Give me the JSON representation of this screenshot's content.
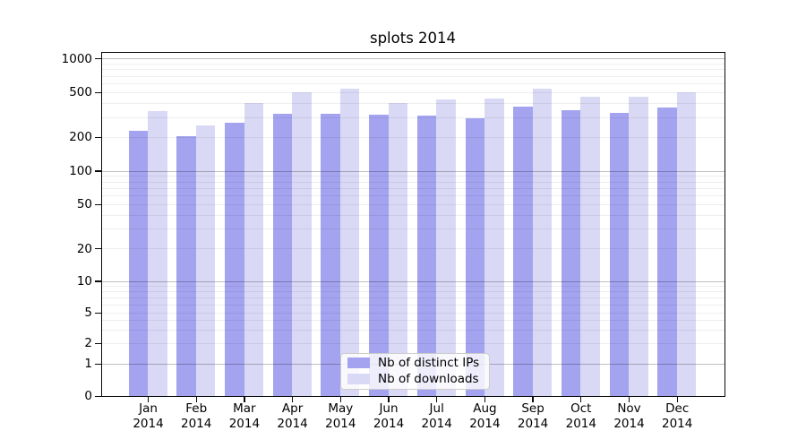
{
  "chart_data": {
    "type": "bar",
    "title": "splots 2014",
    "months": [
      "Jan",
      "Feb",
      "Mar",
      "Apr",
      "May",
      "Jun",
      "Jul",
      "Aug",
      "Sep",
      "Oct",
      "Nov",
      "Dec"
    ],
    "year_label": "2014",
    "series": [
      {
        "name": "Nb of distinct IPs",
        "color": "#a3a3f0",
        "values": [
          225,
          205,
          270,
          325,
          323,
          317,
          310,
          295,
          375,
          345,
          330,
          365
        ]
      },
      {
        "name": "Nb of downloads",
        "color": "#d9d9f6",
        "values": [
          340,
          255,
          400,
          505,
          535,
          400,
          430,
          440,
          540,
          455,
          460,
          505
        ]
      }
    ],
    "y_axis": {
      "scale": "symlog",
      "tick_labels": [
        "1000",
        "500",
        "200",
        "100",
        "50",
        "20",
        "10",
        "5",
        "2",
        "1",
        "0"
      ],
      "tick_values": [
        1000,
        500,
        200,
        100,
        50,
        20,
        10,
        5,
        2,
        1,
        0
      ],
      "major_gridline_values": [
        1000,
        100,
        10,
        1
      ],
      "minor_gridline_values": [
        900,
        800,
        700,
        600,
        500,
        400,
        300,
        200,
        90,
        80,
        70,
        60,
        50,
        40,
        30,
        20,
        9,
        8,
        7,
        6,
        5,
        4,
        3,
        2
      ]
    },
    "legend_entries": [
      "Nb of distinct IPs",
      "Nb of downloads"
    ],
    "grid": true,
    "legend_position": "inside-bottom-center"
  }
}
